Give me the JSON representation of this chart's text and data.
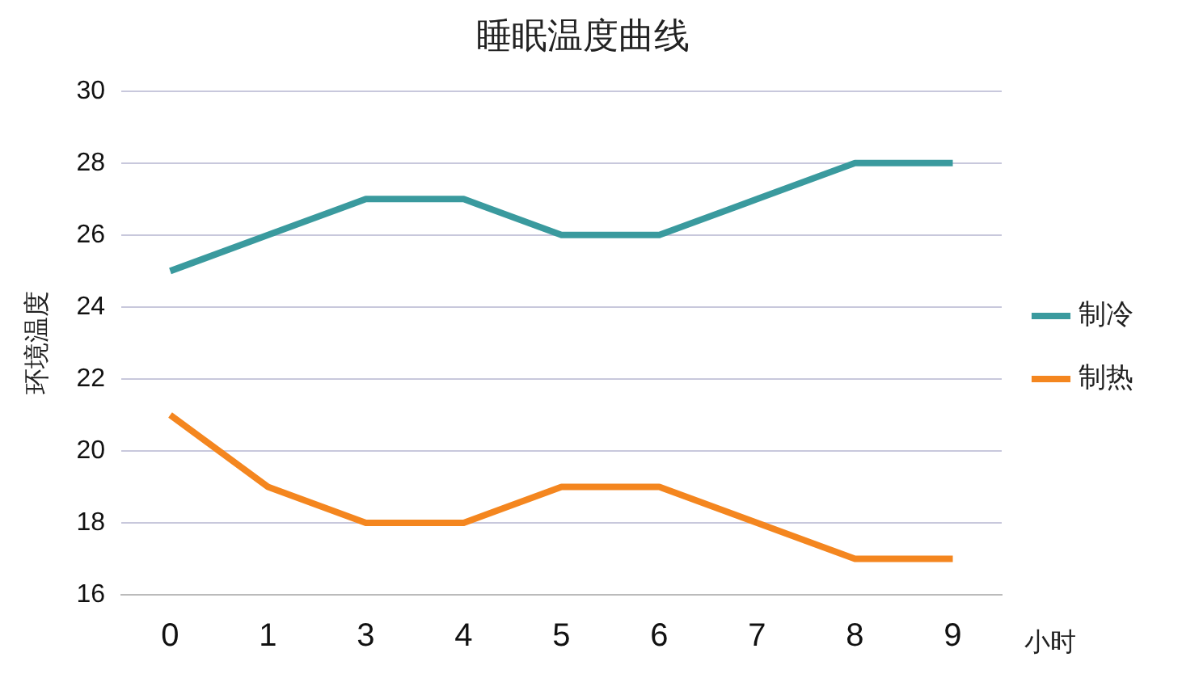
{
  "chart_data": {
    "type": "line",
    "title": "睡眠温度曲线",
    "xlabel": "小时",
    "ylabel": "环境温度",
    "categories": [
      "0",
      "1",
      "3",
      "4",
      "5",
      "6",
      "7",
      "8",
      "9"
    ],
    "series": [
      {
        "name": "制冷",
        "color": "#3a9a9e",
        "values": [
          25,
          26,
          27,
          27,
          26,
          26,
          27,
          28,
          28
        ]
      },
      {
        "name": "制热",
        "color": "#f4861f",
        "values": [
          21,
          19,
          18,
          18,
          19,
          19,
          18,
          17,
          17
        ]
      }
    ],
    "ylim": [
      16,
      30
    ],
    "yticks": [
      16,
      18,
      20,
      22,
      24,
      26,
      28,
      30
    ],
    "grid": "y",
    "legend": "right",
    "marker": "none",
    "line_style": "solid"
  }
}
